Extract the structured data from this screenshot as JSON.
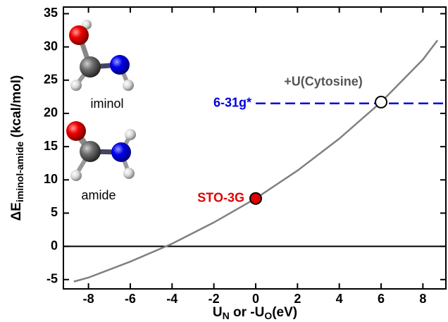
{
  "chart_data": {
    "type": "line",
    "x_label": {
      "main": "U",
      "sub1": "N",
      "mid": " or -U",
      "sub2": "O",
      "end": "(eV)"
    },
    "y_label": {
      "main": "ΔE",
      "sub": "iminol-amide",
      "unit": " (kcal/mol)"
    },
    "xlim": [
      -9.2,
      9.1
    ],
    "ylim": [
      -6.4,
      36
    ],
    "xticks": [
      -8,
      -6,
      -4,
      -2,
      0,
      2,
      4,
      6,
      8
    ],
    "yticks": [
      -5,
      0,
      5,
      10,
      15,
      20,
      25,
      30,
      35
    ],
    "series": [
      {
        "color": "#808080",
        "x": [
          -8.7,
          -8,
          -6,
          -4,
          -2,
          0,
          2,
          4,
          6,
          8,
          8.7
        ],
        "values": [
          -5.3,
          -4.7,
          -2.3,
          0.4,
          3.6,
          7.2,
          11.4,
          16.2,
          21.7,
          28.1,
          31
        ]
      }
    ],
    "hlines": [
      {
        "y": 0,
        "color": "#000000"
      }
    ],
    "reference": {
      "label": "6-31g*",
      "y": 21.5,
      "x_start": 0,
      "color": "#0000dd"
    },
    "points": [
      {
        "label": "STO-3G",
        "x": 0,
        "y": 7.2,
        "color": "#e00000",
        "label_color": "#e00000"
      },
      {
        "label": "+U(Cytosine)",
        "x": 6,
        "y": 21.7,
        "color": "#ffffff",
        "label_color": "#555555"
      }
    ],
    "insets": [
      "iminol",
      "amide"
    ]
  }
}
